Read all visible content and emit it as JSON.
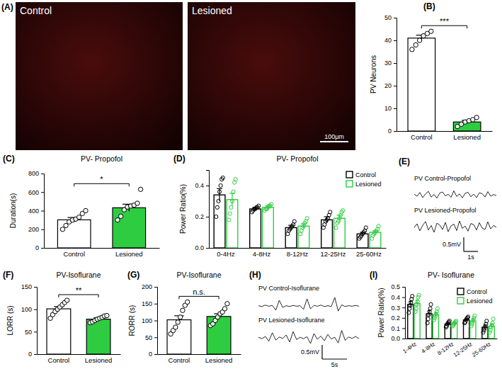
{
  "chart_data": [
    {
      "panel": "(A)",
      "type": "micrograph",
      "images": [
        {
          "label": "Control"
        },
        {
          "label": "Lesioned",
          "scale_bar_label": "100μm"
        }
      ]
    },
    {
      "panel": "(B)",
      "type": "bar",
      "y_label": "PV Neurons",
      "categories": [
        "Control",
        "Lesioned"
      ],
      "values": [
        41,
        4
      ],
      "errors": [
        1.3,
        0.7
      ],
      "points": [
        [
          36,
          38,
          40,
          42,
          43,
          44
        ],
        [
          2,
          3,
          4,
          4.5,
          5,
          6
        ]
      ],
      "colors": [
        "#ffffff",
        "#2ecc40"
      ],
      "ylim": [
        0,
        50
      ],
      "yticks": [
        0,
        10,
        20,
        30,
        40,
        50
      ],
      "annotation": "***"
    },
    {
      "panel": "(C)",
      "type": "bar",
      "title": "PV- Propofol",
      "y_label": "Duration(s)",
      "categories": [
        "Control",
        "Lesioned"
      ],
      "values": [
        302,
        432
      ],
      "errors": [
        25,
        38
      ],
      "points": [
        [
          200,
          240,
          280,
          300,
          310,
          330,
          370,
          400
        ],
        [
          300,
          340,
          410,
          440,
          450,
          460,
          480,
          630
        ]
      ],
      "colors": [
        "#ffffff",
        "#2ecc40"
      ],
      "ylim": [
        0,
        800
      ],
      "yticks": [
        0,
        200,
        400,
        600,
        800
      ],
      "annotation": "*"
    },
    {
      "panel": "(D)",
      "type": "grouped_bar",
      "title": "PV- Propofol",
      "y_label": "Power Ratio(%)",
      "categories": [
        "0-4Hz",
        "4-8Hz",
        "8-12Hz",
        "12-25Hz",
        "25-60Hz"
      ],
      "series": [
        {
          "name": "Control",
          "color": "#000000",
          "values": [
            0.34,
            0.25,
            0.13,
            0.18,
            0.09
          ],
          "errors": [
            0.04,
            0.01,
            0.015,
            0.02,
            0.01
          ],
          "points": [
            [
              0.2,
              0.26,
              0.3,
              0.36,
              0.4,
              0.44,
              0.45
            ],
            [
              0.23,
              0.24,
              0.25,
              0.25,
              0.26,
              0.26,
              0.27
            ],
            [
              0.09,
              0.11,
              0.12,
              0.13,
              0.14,
              0.15,
              0.17
            ],
            [
              0.13,
              0.15,
              0.17,
              0.18,
              0.19,
              0.21,
              0.23
            ],
            [
              0.06,
              0.07,
              0.08,
              0.09,
              0.1,
              0.11,
              0.13
            ]
          ]
        },
        {
          "name": "Lesioned",
          "color": "#2ecc40",
          "values": [
            0.31,
            0.26,
            0.14,
            0.19,
            0.1
          ],
          "errors": [
            0.04,
            0.01,
            0.015,
            0.02,
            0.01
          ],
          "points": [
            [
              0.18,
              0.22,
              0.26,
              0.3,
              0.36,
              0.42,
              0.44
            ],
            [
              0.24,
              0.25,
              0.25,
              0.26,
              0.27,
              0.27,
              0.28
            ],
            [
              0.09,
              0.11,
              0.13,
              0.14,
              0.16,
              0.17,
              0.19
            ],
            [
              0.13,
              0.16,
              0.17,
              0.19,
              0.21,
              0.23,
              0.24
            ],
            [
              0.06,
              0.08,
              0.09,
              0.1,
              0.11,
              0.12,
              0.14
            ]
          ]
        }
      ],
      "ylim": [
        0,
        0.5
      ],
      "yticks": [
        {
          "value": 0,
          "label": "0.0"
        },
        0.2,
        0.4
      ],
      "legend": "upper right"
    },
    {
      "panel": "(E)",
      "type": "trace",
      "x": [
        0,
        0.2,
        0.4,
        0.6,
        0.8,
        1,
        1.2,
        1.4,
        1.6,
        1.8,
        2,
        2.2,
        2.4,
        2.6,
        2.8,
        3,
        3.2,
        3.4,
        3.6,
        3.8,
        4,
        4.2,
        4.4,
        4.6,
        4.8,
        5,
        5.2,
        5.4,
        5.6,
        5.8
      ],
      "series": [
        {
          "name": "PV Control-Propofol",
          "values": [
            0.02,
            -0.05,
            0.08,
            -0.1,
            0.03,
            0.12,
            -0.08,
            0.01,
            -0.12,
            0.06,
            0.1,
            -0.04,
            0.02,
            -0.09,
            0.14,
            -0.06,
            0.03,
            -0.11,
            0.05,
            0.09,
            -0.07,
            0.02,
            -0.1,
            0.07,
            0.04,
            -0.08,
            0.11,
            -0.05,
            0.01,
            -0.03
          ]
        },
        {
          "name": "PV Lesioned-Propofol",
          "values": [
            -0.03,
            0.1,
            -0.15,
            0.05,
            0.18,
            -0.12,
            0.04,
            -0.2,
            0.12,
            0.06,
            -0.1,
            0.15,
            -0.18,
            0.03,
            0.09,
            -0.14,
            0.2,
            -0.06,
            0.02,
            -0.16,
            0.11,
            0.07,
            -0.12,
            0.14,
            -0.05,
            -0.1,
            0.17,
            -0.08,
            0.04,
            -0.02
          ]
        }
      ],
      "scale_bar": {
        "y": {
          "value": 0.5,
          "label": "0.5mV"
        },
        "x": {
          "value": 1,
          "label": "1s"
        }
      }
    },
    {
      "panel": "(F)",
      "type": "bar",
      "title": "PV-Isoflurane",
      "y_label": "LORR (s)",
      "categories": [
        "Control",
        "Lesioned"
      ],
      "values": [
        101,
        78
      ],
      "errors": [
        5,
        3
      ],
      "points": [
        [
          80,
          88,
          95,
          100,
          105,
          110,
          115,
          120
        ],
        [
          70,
          72,
          75,
          78,
          80,
          82,
          85,
          86
        ]
      ],
      "colors": [
        "#ffffff",
        "#2ecc40"
      ],
      "ylim": [
        0,
        150
      ],
      "yticks": [
        0,
        50,
        100,
        150
      ],
      "annotation": "**"
    },
    {
      "panel": "(G)",
      "type": "bar",
      "title": "PV-Isoflurane",
      "y_label": "RORR (s)",
      "categories": [
        "Control",
        "Lesioned"
      ],
      "values": [
        102,
        112
      ],
      "errors": [
        12,
        8
      ],
      "points": [
        [
          60,
          70,
          80,
          95,
          110,
          130,
          145,
          155
        ],
        [
          85,
          90,
          100,
          110,
          120,
          125,
          135,
          150
        ]
      ],
      "colors": [
        "#ffffff",
        "#2ecc40"
      ],
      "ylim": [
        0,
        200
      ],
      "yticks": [
        0,
        50,
        100,
        150,
        200
      ],
      "annotation": "n.s."
    },
    {
      "panel": "(H)",
      "type": "trace",
      "x": [
        0,
        0.7,
        1.4,
        2.1,
        2.8,
        3.5,
        4.2,
        4.9,
        5.6,
        6.3,
        7,
        7.7,
        8.4,
        9.1,
        9.8,
        10.5,
        11.2,
        11.9,
        12.6,
        13.3,
        14,
        14.7,
        15.4,
        16.1,
        16.8,
        17.5,
        18.2,
        18.9,
        19.6,
        20.3
      ],
      "series": [
        {
          "name": "PV Control-Isoflurane",
          "values": [
            0.01,
            -0.02,
            0.03,
            -0.01,
            0.02,
            -0.15,
            0.2,
            -0.05,
            0.01,
            -0.02,
            0.02,
            -0.01,
            0.01,
            -0.12,
            0.25,
            -0.1,
            0.02,
            -0.01,
            0.03,
            -0.02,
            0.01,
            -0.02,
            0.3,
            -0.18,
            0.04,
            -0.02,
            0.01,
            -0.01,
            0.02,
            -0.01
          ]
        },
        {
          "name": "PV Lesioned-Isoflurane",
          "values": [
            0.02,
            -0.03,
            0.05,
            -0.12,
            0.18,
            -0.08,
            0.03,
            -0.02,
            0.1,
            -0.15,
            0.22,
            -0.06,
            0.02,
            -0.03,
            0.04,
            -0.2,
            0.15,
            -0.05,
            0.06,
            -0.1,
            0.12,
            -0.04,
            0.02,
            -0.18,
            0.26,
            -0.09,
            0.03,
            -0.02,
            0.05,
            -0.03
          ]
        }
      ],
      "scale_bar": {
        "y": {
          "value": 0.5,
          "label": "0.5mV"
        },
        "x": {
          "value": 5,
          "label": "5s"
        }
      }
    },
    {
      "panel": "(I)",
      "type": "grouped_bar",
      "title": "PV- Isoflurane",
      "y_label": "Power Ratio(%)",
      "categories": [
        "1-4Hz",
        "4-8Hz",
        "8-12Hz",
        "12-25Hz",
        "25-60Hz"
      ],
      "series": [
        {
          "name": "Control",
          "color": "#000000",
          "values": [
            0.33,
            0.24,
            0.14,
            0.18,
            0.11
          ],
          "errors": [
            0.03,
            0.03,
            0.01,
            0.01,
            0.02
          ],
          "points": [
            [
              0.25,
              0.29,
              0.32,
              0.35,
              0.38,
              0.41
            ],
            [
              0.15,
              0.19,
              0.23,
              0.26,
              0.29,
              0.33
            ],
            [
              0.11,
              0.12,
              0.14,
              0.15,
              0.16,
              0.17
            ],
            [
              0.15,
              0.16,
              0.18,
              0.19,
              0.2,
              0.21
            ],
            [
              0.06,
              0.08,
              0.1,
              0.12,
              0.14,
              0.17
            ]
          ]
        },
        {
          "name": "Lesioned",
          "color": "#2ecc40",
          "values": [
            0.34,
            0.23,
            0.15,
            0.17,
            0.12
          ],
          "errors": [
            0.03,
            0.02,
            0.01,
            0.02,
            0.02
          ],
          "points": [
            [
              0.26,
              0.29,
              0.33,
              0.36,
              0.4,
              0.42
            ],
            [
              0.18,
              0.2,
              0.22,
              0.24,
              0.26,
              0.29
            ],
            [
              0.12,
              0.13,
              0.14,
              0.15,
              0.16,
              0.17
            ],
            [
              0.12,
              0.14,
              0.16,
              0.18,
              0.2,
              0.22
            ],
            [
              0.06,
              0.08,
              0.11,
              0.13,
              0.15,
              0.19
            ]
          ]
        }
      ],
      "ylim": [
        0,
        0.5
      ],
      "yticks": [
        {
          "value": 0,
          "label": "0.0"
        },
        0.1,
        0.2,
        0.3,
        0.4,
        0.5
      ],
      "legend": "upper right"
    }
  ]
}
